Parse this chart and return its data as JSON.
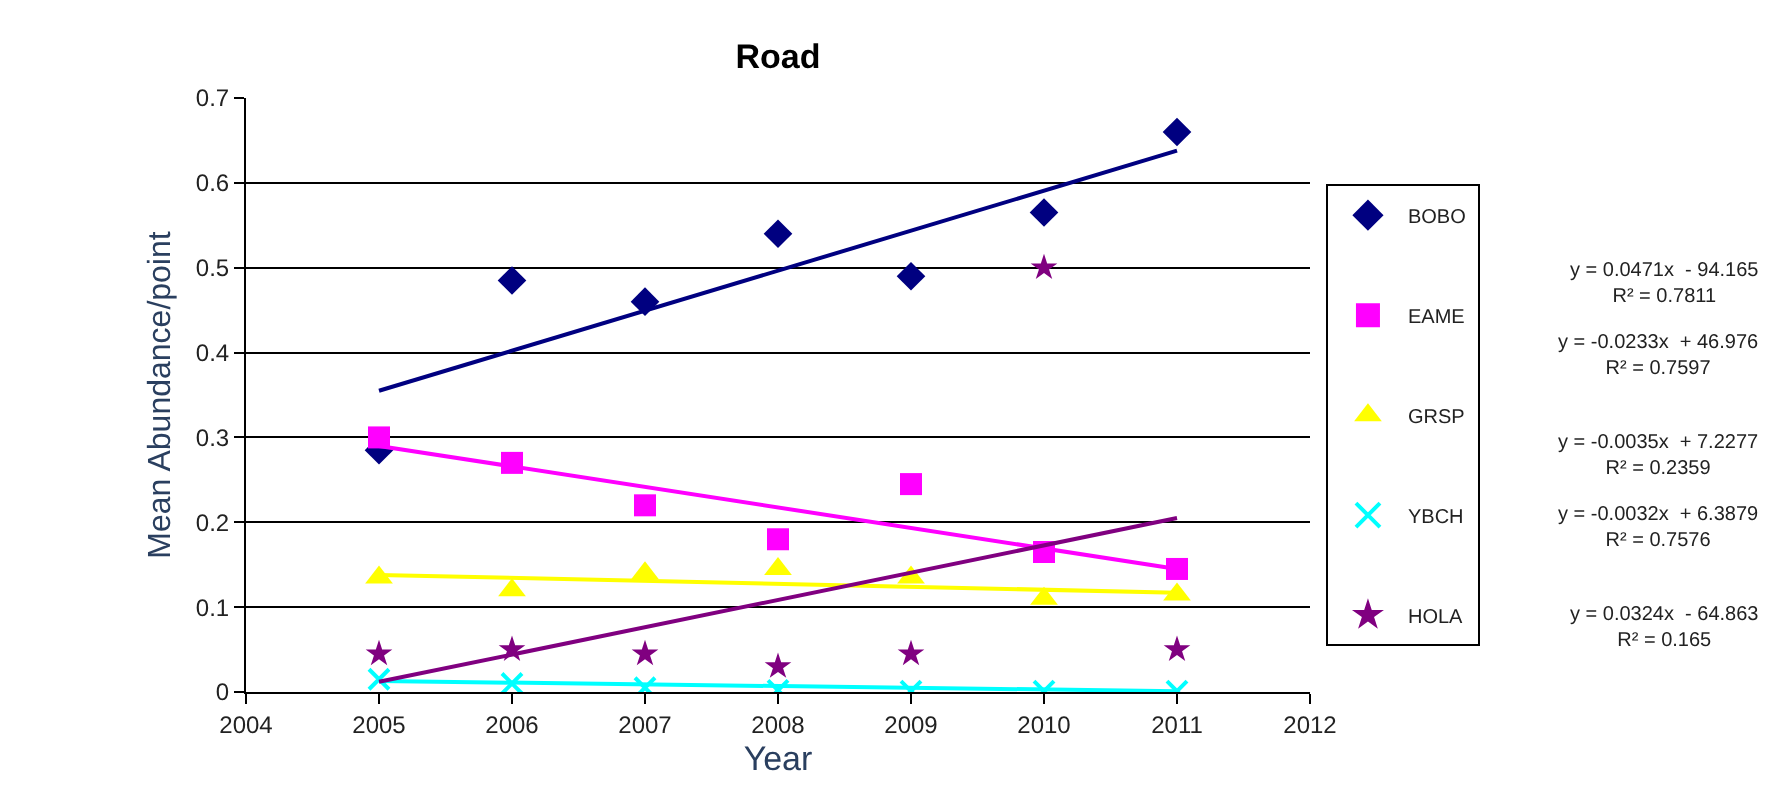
{
  "chart_data": {
    "type": "scatter",
    "title": "Road",
    "xlabel": "Year",
    "ylabel": "Mean Abundance/point",
    "x": [
      2005,
      2006,
      2007,
      2008,
      2009,
      2010,
      2011
    ],
    "series": [
      {
        "name": "BOBO",
        "color": "#000080",
        "marker": "diamond",
        "values": [
          0.285,
          0.485,
          0.46,
          0.54,
          0.49,
          0.565,
          0.66
        ]
      },
      {
        "name": "EAME",
        "color": "#ff00ff",
        "marker": "square",
        "values": [
          0.3,
          0.27,
          0.22,
          0.18,
          0.245,
          0.165,
          0.145
        ]
      },
      {
        "name": "GRSP",
        "color": "#ffff00",
        "marker": "triangle",
        "values": [
          0.135,
          0.12,
          0.14,
          0.145,
          0.135,
          0.11,
          0.115
        ]
      },
      {
        "name": "YBCH",
        "color": "#00ffff",
        "marker": "cross",
        "values": [
          0.015,
          0.01,
          0.005,
          0.002,
          0.001,
          0.001,
          0.001
        ]
      },
      {
        "name": "HOLA",
        "color": "#800080",
        "marker": "star",
        "values": [
          0.045,
          0.05,
          0.045,
          0.03,
          0.045,
          0.5,
          0.05
        ]
      },
      {
        "type": "line",
        "color": "#000080",
        "values": [
          0.355,
          null,
          null,
          null,
          null,
          null,
          0.638
        ]
      },
      {
        "type": "line",
        "color": "#ff00ff",
        "values": [
          0.29,
          null,
          null,
          null,
          null,
          null,
          0.145
        ]
      },
      {
        "type": "line",
        "color": "#ffff00",
        "values": [
          0.138,
          null,
          null,
          null,
          null,
          null,
          0.117
        ]
      },
      {
        "type": "line",
        "color": "#00ffff",
        "values": [
          0.013,
          null,
          null,
          null,
          null,
          null,
          0.001
        ]
      },
      {
        "type": "line",
        "color": "#800080",
        "values": [
          0.012,
          null,
          null,
          null,
          null,
          null,
          0.205
        ]
      }
    ],
    "xlim": [
      2004,
      2012
    ],
    "xticks": [
      2004,
      2005,
      2006,
      2007,
      2008,
      2009,
      2010,
      2011,
      2012
    ],
    "ylim": [
      0,
      0.7
    ],
    "yticks": [
      0,
      0.1,
      0.2,
      0.3,
      0.4,
      0.5,
      0.6,
      0.7
    ],
    "grid": "y",
    "legend": "right",
    "annotations": [
      "y = 0.0471x  - 94.165\nR² = 0.7811",
      "y = -0.0233x  + 46.976\nR² = 0.7597",
      "y = -0.0035x  + 7.2277\nR² = 0.2359",
      "y = -0.0032x  + 6.3879\nR² = 0.7576",
      "y = 0.0324x  - 64.863\nR² = 0.165"
    ]
  }
}
